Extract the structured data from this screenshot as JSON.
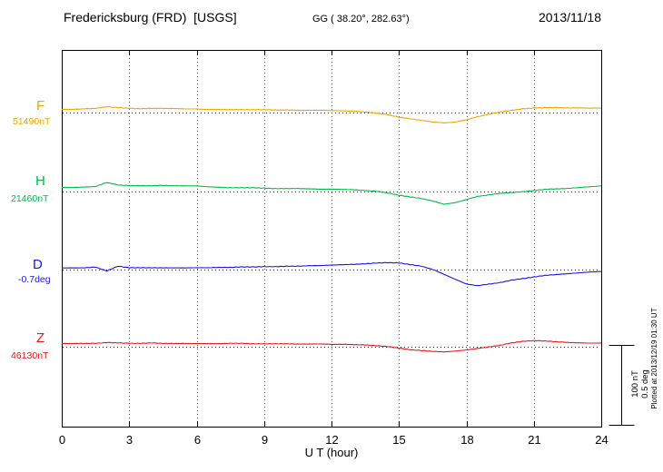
{
  "header": {
    "station": "Fredericksburg (FRD)  [USGS]",
    "coordinates": "GG ( 38.20°, 282.63°)",
    "date": "2013/11/18"
  },
  "footer": {
    "xlabel": "U T (hour)"
  },
  "side": {
    "scale_labels": [
      "100 nT",
      "0.5 deg"
    ],
    "plotted_note": "Plotted at 2013/12/19 01:30 UT"
  },
  "chart_data": {
    "type": "line",
    "title": "Fredericksburg (FRD) [USGS] magnetogram 2013/11/18",
    "xlabel": "U T (hour)",
    "xlim": [
      0,
      24
    ],
    "x_ticks": [
      0,
      3,
      6,
      9,
      12,
      15,
      18,
      21,
      24
    ],
    "grid": "dotted vertical lines at 3-hour ticks; dotted horizontal baseline per trace",
    "scale": {
      "nT_per_division": 100,
      "deg_per_division": 0.5
    },
    "series": [
      {
        "name": "F",
        "baseline_label": "51490nT",
        "baseline_value": 51490,
        "units": "nT",
        "color": "#F0A500",
        "x_start": 0,
        "x_step": 0.5,
        "values": [
          4,
          4,
          4.5,
          5,
          7,
          6,
          5,
          4.5,
          5,
          5,
          5,
          4.5,
          4.5,
          4,
          4,
          4,
          4,
          4,
          4,
          3.5,
          3.5,
          3,
          3,
          3,
          2.5,
          2,
          1.5,
          0.5,
          -1,
          -3,
          -6,
          -8,
          -10,
          -12,
          -13,
          -12,
          -9,
          -5,
          -2,
          1,
          3,
          5,
          6,
          6.5,
          6.5,
          6,
          6,
          5.5,
          5.5
        ]
      },
      {
        "name": "H",
        "baseline_label": "21460nT",
        "baseline_value": 21460,
        "units": "nT",
        "color": "#00BE46",
        "x_start": 0,
        "x_step": 0.5,
        "values": [
          5,
          5,
          5.5,
          6,
          11,
          8,
          7,
          7,
          7,
          7.5,
          7,
          7,
          7,
          6,
          5.5,
          5,
          5,
          5,
          4.5,
          4,
          4,
          4,
          3.5,
          3,
          3,
          2.5,
          2,
          1,
          0,
          -2,
          -5,
          -7,
          -9,
          -12,
          -16,
          -14,
          -10,
          -6,
          -4,
          -2,
          -1,
          0,
          1.5,
          3,
          3.5,
          4,
          5,
          6,
          7
        ]
      },
      {
        "name": "D",
        "baseline_label": "-0.7deg",
        "baseline_value": -0.7,
        "units": "deg",
        "color": "#1818E6",
        "x_start": 0,
        "x_step": 0.5,
        "values": [
          0.01,
          0.01,
          0.01,
          0.015,
          -0.01,
          0.02,
          0.01,
          0.01,
          0.01,
          0.01,
          0.01,
          0.01,
          0.012,
          0.012,
          0.015,
          0.015,
          0.018,
          0.018,
          0.02,
          0.02,
          0.022,
          0.022,
          0.025,
          0.025,
          0.028,
          0.03,
          0.032,
          0.035,
          0.04,
          0.042,
          0.04,
          0.03,
          0.02,
          0,
          -0.03,
          -0.06,
          -0.09,
          -0.1,
          -0.09,
          -0.08,
          -0.065,
          -0.055,
          -0.045,
          -0.035,
          -0.03,
          -0.025,
          -0.02,
          -0.015,
          -0.012
        ]
      },
      {
        "name": "Z",
        "baseline_label": "46130nT",
        "baseline_value": 46130,
        "units": "nT",
        "color": "#E81818",
        "x_start": 0,
        "x_step": 0.5,
        "values": [
          4,
          4,
          4,
          4,
          5,
          4.5,
          4,
          4,
          4.5,
          4,
          4,
          4,
          4,
          4,
          4,
          4.5,
          4.5,
          4,
          4,
          4,
          4,
          3.5,
          3.5,
          3.5,
          3,
          3,
          2.5,
          2,
          1,
          0,
          -2,
          -4,
          -5,
          -6,
          -6.5,
          -5.5,
          -4,
          -2,
          0,
          2,
          5,
          7,
          8,
          7.5,
          6.5,
          5.5,
          5,
          4.5,
          4.5
        ]
      }
    ]
  }
}
